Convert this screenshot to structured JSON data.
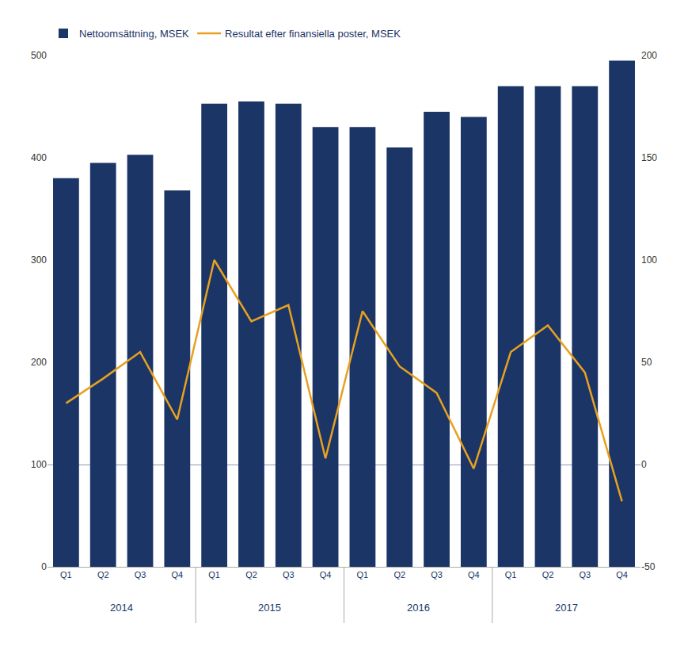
{
  "chart_data": {
    "type": "bar",
    "categories": [
      "Q1",
      "Q2",
      "Q3",
      "Q4",
      "Q1",
      "Q2",
      "Q3",
      "Q4",
      "Q1",
      "Q2",
      "Q3",
      "Q4",
      "Q1",
      "Q2",
      "Q3",
      "Q4"
    ],
    "annotations": [
      "2014",
      "2015",
      "2016",
      "2017"
    ],
    "series": [
      {
        "name": "Nettoomsättning, MSEK",
        "type": "bar",
        "color": "#1a3566",
        "values": [
          380,
          395,
          403,
          368,
          453,
          455,
          453,
          430,
          430,
          410,
          445,
          440,
          470,
          470,
          470,
          495
        ]
      },
      {
        "name": "Resultat efter finansiella poster, MSEK",
        "type": "line",
        "axis": "y2",
        "color": "#e8a020",
        "values": [
          30,
          42,
          55,
          22,
          100,
          70,
          78,
          3,
          75,
          48,
          35,
          -2,
          55,
          68,
          45,
          -18
        ]
      }
    ],
    "ylim": [
      0,
      500
    ],
    "yticks": [
      0,
      100,
      200,
      300,
      400,
      500
    ],
    "y2lim": [
      -50,
      200
    ],
    "y2ticks": [
      -50,
      0,
      50,
      100,
      150,
      200
    ],
    "grid": false,
    "legend": "upper left"
  }
}
